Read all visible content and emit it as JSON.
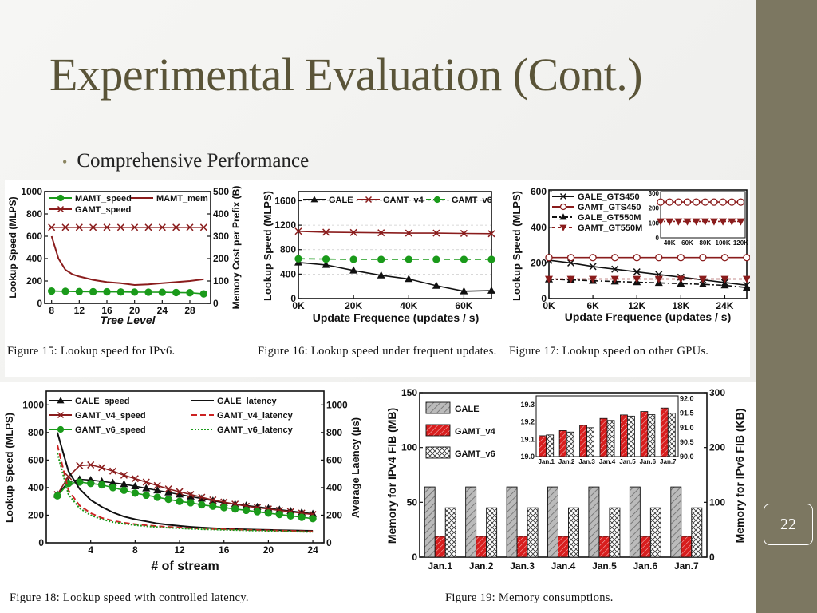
{
  "slide": {
    "title": "Experimental Evaluation (Cont.)",
    "bullet": "Comprehensive Performance",
    "page_number": "22",
    "colors": {
      "title": "#5a5438",
      "band": "#7c7761"
    }
  },
  "figures": {
    "fig15": {
      "caption": "Figure 15: Lookup speed for IPv6.",
      "xlabel": "Tree Level",
      "ylabel": "Lookup Speed (MLPS)",
      "y2label": "Memory Cost per Prefix (B)",
      "xticks": [
        "8",
        "12",
        "16",
        "20",
        "24",
        "28"
      ],
      "yticks": [
        "0",
        "200",
        "400",
        "600",
        "800",
        "1000"
      ],
      "y2ticks": [
        "0",
        "100",
        "200",
        "300",
        "400",
        "500"
      ],
      "legend": [
        "MAMT_speed",
        "MAMT_mem",
        "GAMT_speed"
      ]
    },
    "fig16": {
      "caption": "Figure 16: Lookup speed under frequent updates.",
      "xlabel": "Update Frequence (updates / s)",
      "ylabel": "Lookup Speed (MLPS)",
      "xticks": [
        "0K",
        "20K",
        "40K",
        "60K"
      ],
      "yticks": [
        "0",
        "400",
        "800",
        "1200",
        "1600"
      ],
      "legend": [
        "GALE",
        "GAMT_v4",
        "GAMT_v6"
      ]
    },
    "fig17": {
      "caption": "Figure 17: Lookup speed on other GPUs.",
      "xlabel": "Update Frequence (updates / s)",
      "ylabel": "Lookup Speed (MLPS)",
      "xticks": [
        "0K",
        "6K",
        "12K",
        "18K",
        "24K"
      ],
      "yticks": [
        "0",
        "200",
        "400",
        "600"
      ],
      "inset_xticks": [
        "40K",
        "60K",
        "80K",
        "100K",
        "120K"
      ],
      "inset_yticks": [
        "0",
        "100",
        "200",
        "300"
      ],
      "legend": [
        "GALE_GTS450",
        "GAMT_GTS450",
        "GALE_GT550M",
        "GAMT_GT550M"
      ]
    },
    "fig18": {
      "caption": "Figure 18: Lookup speed with controlled latency.",
      "xlabel": "# of stream",
      "ylabel": "Lookup Speed (MLPS)",
      "y2label": "Average Laency (µs)",
      "xticks": [
        "4",
        "8",
        "12",
        "16",
        "20",
        "24"
      ],
      "yticks": [
        "0",
        "200",
        "400",
        "600",
        "800",
        "1000"
      ],
      "y2ticks": [
        "0",
        "200",
        "400",
        "600",
        "800",
        "1000"
      ],
      "legend": [
        "GALE_speed",
        "GALE_latency",
        "GAMT_v4_speed",
        "GAMT_v4_latency",
        "GAMT_v6_speed",
        "GAMT_v6_latency"
      ]
    },
    "fig19": {
      "caption": "Figure 19: Memory consumptions.",
      "ylabel": "Memory for IPv4 FIB (MB)",
      "y2label": "Memory for IPv6 FIB (KB)",
      "yticks": [
        "0",
        "50",
        "100",
        "150"
      ],
      "y2ticks": [
        "0",
        "100",
        "200",
        "300"
      ],
      "inset_yticks": [
        "19.0",
        "19.1",
        "19.2",
        "19.3"
      ],
      "inset_y2ticks": [
        "90.0",
        "90.5",
        "91.0",
        "91.5",
        "92.0"
      ],
      "legend": [
        "GALE",
        "GAMT_v4",
        "GAMT_v6"
      ]
    }
  },
  "chart_data": [
    {
      "type": "line",
      "id": "fig15",
      "x": [
        8,
        10,
        12,
        14,
        16,
        18,
        20,
        22,
        24,
        26,
        28,
        30
      ],
      "xlim": [
        7,
        31
      ],
      "ylim": [
        0,
        1000
      ],
      "y2lim": [
        0,
        500
      ],
      "series": [
        {
          "name": "MAMT_speed",
          "axis": "left",
          "marker": "circle",
          "color": "#1a9a1a",
          "values": [
            110,
            108,
            105,
            104,
            103,
            102,
            101,
            100,
            99,
            97,
            95,
            85
          ]
        },
        {
          "name": "GAMT_speed",
          "axis": "left",
          "marker": "x",
          "color": "#8a1c1c",
          "values": [
            680,
            680,
            680,
            680,
            680,
            680,
            680,
            680,
            680,
            680,
            680,
            680
          ]
        },
        {
          "name": "MAMT_mem",
          "axis": "right",
          "marker": "none",
          "color": "#8a1c1c",
          "x": [
            8,
            9,
            10,
            11,
            12,
            14,
            16,
            18,
            20,
            22,
            24,
            26,
            28,
            30
          ],
          "values": [
            300,
            200,
            150,
            130,
            120,
            105,
            95,
            90,
            82,
            85,
            90,
            95,
            100,
            108
          ]
        }
      ]
    },
    {
      "type": "line",
      "id": "fig16",
      "x": [
        0,
        10,
        20,
        30,
        40,
        50,
        60,
        70
      ],
      "xlim": [
        0,
        70
      ],
      "ylim": [
        0,
        1600
      ],
      "series": [
        {
          "name": "GALE",
          "marker": "triangle",
          "color": "#111111",
          "values": [
            590,
            550,
            460,
            380,
            320,
            210,
            120,
            130
          ]
        },
        {
          "name": "GAMT_v4",
          "marker": "x",
          "color": "#8a1c1c",
          "values": [
            1100,
            1085,
            1080,
            1075,
            1070,
            1070,
            1065,
            1060
          ]
        },
        {
          "name": "GAMT_v6",
          "marker": "circle",
          "color": "#1a9a1a",
          "values": [
            650,
            645,
            640,
            640,
            640,
            640,
            640,
            640
          ]
        }
      ]
    },
    {
      "type": "line",
      "id": "fig17",
      "x": [
        0,
        3,
        6,
        9,
        12,
        15,
        18,
        21,
        24,
        27
      ],
      "xlim": [
        0,
        27
      ],
      "ylim": [
        0,
        600
      ],
      "series": [
        {
          "name": "GALE_GTS450",
          "marker": "x",
          "color": "#111111",
          "values": [
            215,
            200,
            180,
            165,
            150,
            135,
            120,
            105,
            90,
            75
          ]
        },
        {
          "name": "GAMT_GTS450",
          "marker": "circle",
          "color": "#8a1c1c",
          "values": [
            230,
            230,
            230,
            230,
            230,
            230,
            230,
            230,
            230,
            230
          ]
        },
        {
          "name": "GALE_GT550M",
          "marker": "triangle",
          "color": "#111111",
          "values": [
            108,
            105,
            100,
            96,
            92,
            88,
            84,
            80,
            74,
            62
          ]
        },
        {
          "name": "GAMT_GT550M",
          "marker": "triangle-down",
          "color": "#8a1c1c",
          "values": [
            110,
            110,
            110,
            110,
            110,
            110,
            110,
            110,
            110,
            110
          ]
        }
      ],
      "inset": {
        "x": [
          30,
          40,
          50,
          60,
          70,
          80,
          90,
          100,
          110,
          120
        ],
        "xlim": [
          30,
          125
        ],
        "ylim": [
          0,
          300
        ],
        "series": [
          {
            "name": "GAMT_GTS450",
            "marker": "circle",
            "color": "#8a1c1c",
            "values": [
              240,
              240,
              240,
              240,
              240,
              240,
              240,
              240,
              240,
              240
            ]
          },
          {
            "name": "GAMT_GT550M",
            "marker": "triangle-down",
            "color": "#8a1c1c",
            "values": [
              110,
              110,
              110,
              110,
              110,
              110,
              110,
              110,
              110,
              110
            ]
          }
        ]
      }
    },
    {
      "type": "line",
      "id": "fig18",
      "x": [
        1,
        2,
        3,
        4,
        5,
        6,
        7,
        8,
        9,
        10,
        11,
        12,
        13,
        14,
        15,
        16,
        17,
        18,
        19,
        20,
        21,
        22,
        23,
        24
      ],
      "xlim": [
        0,
        25
      ],
      "ylim": [
        0,
        1100
      ],
      "y2lim": [
        0,
        1100
      ],
      "series": [
        {
          "name": "GALE_speed",
          "axis": "left",
          "marker": "triangle",
          "color": "#111111",
          "values": [
            350,
            440,
            460,
            455,
            445,
            435,
            425,
            410,
            395,
            380,
            365,
            350,
            335,
            320,
            305,
            290,
            280,
            270,
            260,
            250,
            240,
            230,
            220,
            210
          ]
        },
        {
          "name": "GAMT_v4_speed",
          "axis": "left",
          "marker": "x",
          "color": "#8a1c1c",
          "values": [
            350,
            480,
            560,
            565,
            545,
            520,
            490,
            465,
            440,
            415,
            390,
            370,
            350,
            330,
            310,
            295,
            280,
            265,
            255,
            245,
            235,
            225,
            215,
            205
          ]
        },
        {
          "name": "GAMT_v6_speed",
          "axis": "left",
          "marker": "circle",
          "color": "#1a9a1a",
          "values": [
            340,
            430,
            440,
            430,
            420,
            400,
            380,
            360,
            345,
            330,
            315,
            300,
            290,
            275,
            265,
            255,
            245,
            235,
            225,
            215,
            205,
            195,
            185,
            175
          ]
        },
        {
          "name": "GALE_latency",
          "axis": "right",
          "marker": "none",
          "color": "#111111",
          "values": [
            800,
            520,
            390,
            310,
            260,
            220,
            190,
            170,
            155,
            140,
            130,
            122,
            115,
            110,
            106,
            102,
            99,
            97,
            95,
            93,
            91,
            90,
            88,
            87
          ]
        },
        {
          "name": "GAMT_v4_latency",
          "axis": "right",
          "marker": "none",
          "color": "#cc2222",
          "values": [
            710,
            380,
            270,
            215,
            180,
            160,
            145,
            135,
            127,
            120,
            115,
            110,
            106,
            103,
            100,
            98,
            96,
            94,
            92,
            90,
            88,
            86,
            84,
            82
          ]
        },
        {
          "name": "GAMT_v6_latency",
          "axis": "right",
          "marker": "none",
          "color": "#1a9a1a",
          "values": [
            650,
            350,
            250,
            200,
            170,
            150,
            138,
            128,
            120,
            114,
            109,
            105,
            101,
            98,
            96,
            94,
            92,
            90,
            88,
            86,
            84,
            82,
            80,
            78
          ]
        }
      ]
    },
    {
      "type": "bar",
      "id": "fig19",
      "categories": [
        "Jan.1",
        "Jan.2",
        "Jan.3",
        "Jan.4",
        "Jan.5",
        "Jan.6",
        "Jan.7"
      ],
      "ylim": [
        0,
        150
      ],
      "y2lim": [
        0,
        300
      ],
      "series": [
        {
          "name": "GALE",
          "values": [
            64,
            64,
            64,
            64,
            64,
            64,
            64
          ],
          "color": "#bbbbbb"
        },
        {
          "name": "GAMT_v4",
          "values": [
            19,
            19,
            19,
            19,
            19,
            19,
            19
          ],
          "color": "#d81e1e"
        },
        {
          "name": "GAMT_v6",
          "axis": "right",
          "values": [
            90,
            90,
            90,
            90,
            90,
            90,
            90
          ],
          "color": "#ffffff"
        }
      ],
      "inset": {
        "categories": [
          "Jan.1",
          "Jan.2",
          "Jan.3",
          "Jan.4",
          "Jan.5",
          "Jan.6",
          "Jan.7"
        ],
        "ylim": [
          19.0,
          19.35
        ],
        "y2lim": [
          90.0,
          92.1
        ],
        "series": [
          {
            "name": "GAMT_v4",
            "values": [
              19.12,
              19.15,
              19.18,
              19.22,
              19.24,
              19.26,
              19.28
            ],
            "color": "#d81e1e"
          },
          {
            "name": "GAMT_v6",
            "axis": "right",
            "values": [
              90.75,
              90.85,
              91.0,
              91.25,
              91.4,
              91.45,
              91.5
            ],
            "color": "#ffffff"
          }
        ]
      }
    }
  ]
}
